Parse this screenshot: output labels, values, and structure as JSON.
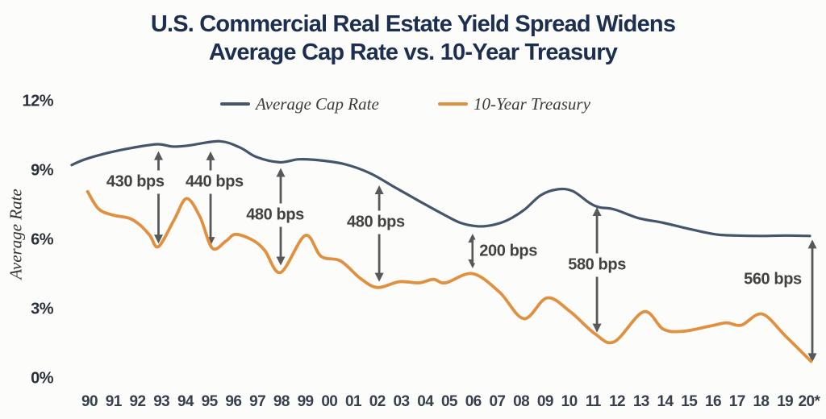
{
  "title": {
    "line1": "U.S. Commercial Real Estate Yield Spread Widens",
    "line2": "Average Cap Rate vs. 10-Year Treasury"
  },
  "legend": [
    {
      "label": "Average Cap Rate",
      "color": "#45556c"
    },
    {
      "label": "10-Year Treasury",
      "color": "#e0903f"
    }
  ],
  "y_axis": {
    "title": "Average Rate",
    "ticks": [
      {
        "label": "12%",
        "value": 12
      },
      {
        "label": "9%",
        "value": 9
      },
      {
        "label": "6%",
        "value": 6
      },
      {
        "label": "3%",
        "value": 3
      },
      {
        "label": "0%",
        "value": 0
      }
    ]
  },
  "x_axis": {
    "ticks": [
      "90",
      "91",
      "92",
      "93",
      "94",
      "95",
      "96",
      "97",
      "98",
      "99",
      "00",
      "01",
      "02",
      "03",
      "04",
      "05",
      "06",
      "07",
      "08",
      "09",
      "10",
      "11",
      "12",
      "13",
      "14",
      "15",
      "16",
      "17",
      "18",
      "19",
      "20*"
    ]
  },
  "chart_data": {
    "type": "line",
    "title": "U.S. Commercial Real Estate Yield Spread Widens — Average Cap Rate vs. 10-Year Treasury",
    "ylabel": "Average Rate",
    "ylim": [
      0,
      12
    ],
    "x_unit": "years since 1990 (x axis labeled 90 through 20*)",
    "grid": false,
    "legend_position": "top",
    "series": [
      {
        "name": "Average Cap Rate",
        "color": "#45556c",
        "width": 3.2,
        "points": [
          [
            -0.2,
            9.25
          ],
          [
            0.35,
            9.5
          ],
          [
            1.3,
            9.78
          ],
          [
            2.3,
            10.0
          ],
          [
            3.3,
            10.15
          ],
          [
            3.95,
            10.05
          ],
          [
            4.6,
            10.1
          ],
          [
            5.85,
            10.28
          ],
          [
            6.7,
            10.0
          ],
          [
            7.35,
            9.6
          ],
          [
            8.3,
            9.37
          ],
          [
            9.1,
            9.5
          ],
          [
            10,
            9.45
          ],
          [
            11,
            9.28
          ],
          [
            12,
            8.9
          ],
          [
            13,
            8.3
          ],
          [
            14,
            7.7
          ],
          [
            15,
            7.12
          ],
          [
            15.7,
            6.75
          ],
          [
            16.4,
            6.6
          ],
          [
            17,
            6.65
          ],
          [
            17.6,
            6.85
          ],
          [
            18.3,
            7.3
          ],
          [
            19,
            7.95
          ],
          [
            19.7,
            8.2
          ],
          [
            20.3,
            8.12
          ],
          [
            21,
            7.6
          ],
          [
            21.4,
            7.42
          ],
          [
            22,
            7.33
          ],
          [
            23,
            6.95
          ],
          [
            24,
            6.75
          ],
          [
            25.2,
            6.45
          ],
          [
            26.2,
            6.24
          ],
          [
            27,
            6.2
          ],
          [
            28,
            6.18
          ],
          [
            29,
            6.2
          ],
          [
            30,
            6.18
          ]
        ]
      },
      {
        "name": "10-Year Treasury",
        "color": "#e0903f",
        "width": 3.8,
        "points": [
          [
            0.45,
            8.1
          ],
          [
            0.9,
            7.35
          ],
          [
            1.5,
            7.08
          ],
          [
            2.15,
            6.95
          ],
          [
            2.6,
            6.65
          ],
          [
            3.0,
            6.2
          ],
          [
            3.35,
            5.72
          ],
          [
            4.0,
            6.9
          ],
          [
            4.5,
            7.8
          ],
          [
            5.05,
            7.0
          ],
          [
            5.55,
            5.65
          ],
          [
            6.1,
            5.95
          ],
          [
            6.5,
            6.25
          ],
          [
            7.2,
            6.0
          ],
          [
            7.7,
            5.55
          ],
          [
            8.35,
            4.6
          ],
          [
            9.35,
            6.2
          ],
          [
            10.0,
            5.3
          ],
          [
            10.8,
            5.1
          ],
          [
            11.6,
            4.35
          ],
          [
            12.3,
            3.95
          ],
          [
            13.2,
            4.2
          ],
          [
            14.0,
            4.15
          ],
          [
            14.6,
            4.3
          ],
          [
            15.1,
            4.15
          ],
          [
            16.2,
            4.55
          ],
          [
            17.3,
            3.75
          ],
          [
            18.3,
            2.6
          ],
          [
            19.25,
            3.5
          ],
          [
            20.2,
            2.9
          ],
          [
            21.2,
            1.95
          ],
          [
            22.0,
            1.6
          ],
          [
            23.2,
            2.9
          ],
          [
            24.0,
            2.15
          ],
          [
            24.8,
            2.05
          ],
          [
            26.0,
            2.3
          ],
          [
            26.6,
            2.42
          ],
          [
            27.2,
            2.32
          ],
          [
            28.05,
            2.8
          ],
          [
            29.0,
            1.85
          ],
          [
            30.05,
            0.75
          ]
        ]
      }
    ],
    "annotations": [
      {
        "text": "430 bps",
        "x": 3.35,
        "from": 9.85,
        "to": 5.85,
        "label_x": 2.4,
        "label_y": 8.5
      },
      {
        "text": "440 bps",
        "x": 5.48,
        "from": 9.84,
        "to": 5.75,
        "label_x": 5.64,
        "label_y": 8.5
      },
      {
        "text": "480 bps",
        "x": 8.35,
        "from": 9.12,
        "to": 4.9,
        "label_x": 8.12,
        "label_y": 7.08
      },
      {
        "text": "480 bps",
        "x": 12.38,
        "from": 8.37,
        "to": 4.2,
        "label_x": 12.24,
        "label_y": 6.77
      },
      {
        "text": "200 bps",
        "x": 16.2,
        "from": 6.28,
        "to": 4.78,
        "label_x": 17.66,
        "label_y": 5.51
      },
      {
        "text": "580 bps",
        "x": 21.29,
        "from": 7.43,
        "to": 2.0,
        "label_x": 21.29,
        "label_y": 4.92
      },
      {
        "text": "560 bps",
        "x": 30.1,
        "from": 6.02,
        "to": 0.72,
        "label_x": 28.48,
        "label_y": 4.3
      }
    ],
    "arrow_color": "#57585a"
  }
}
